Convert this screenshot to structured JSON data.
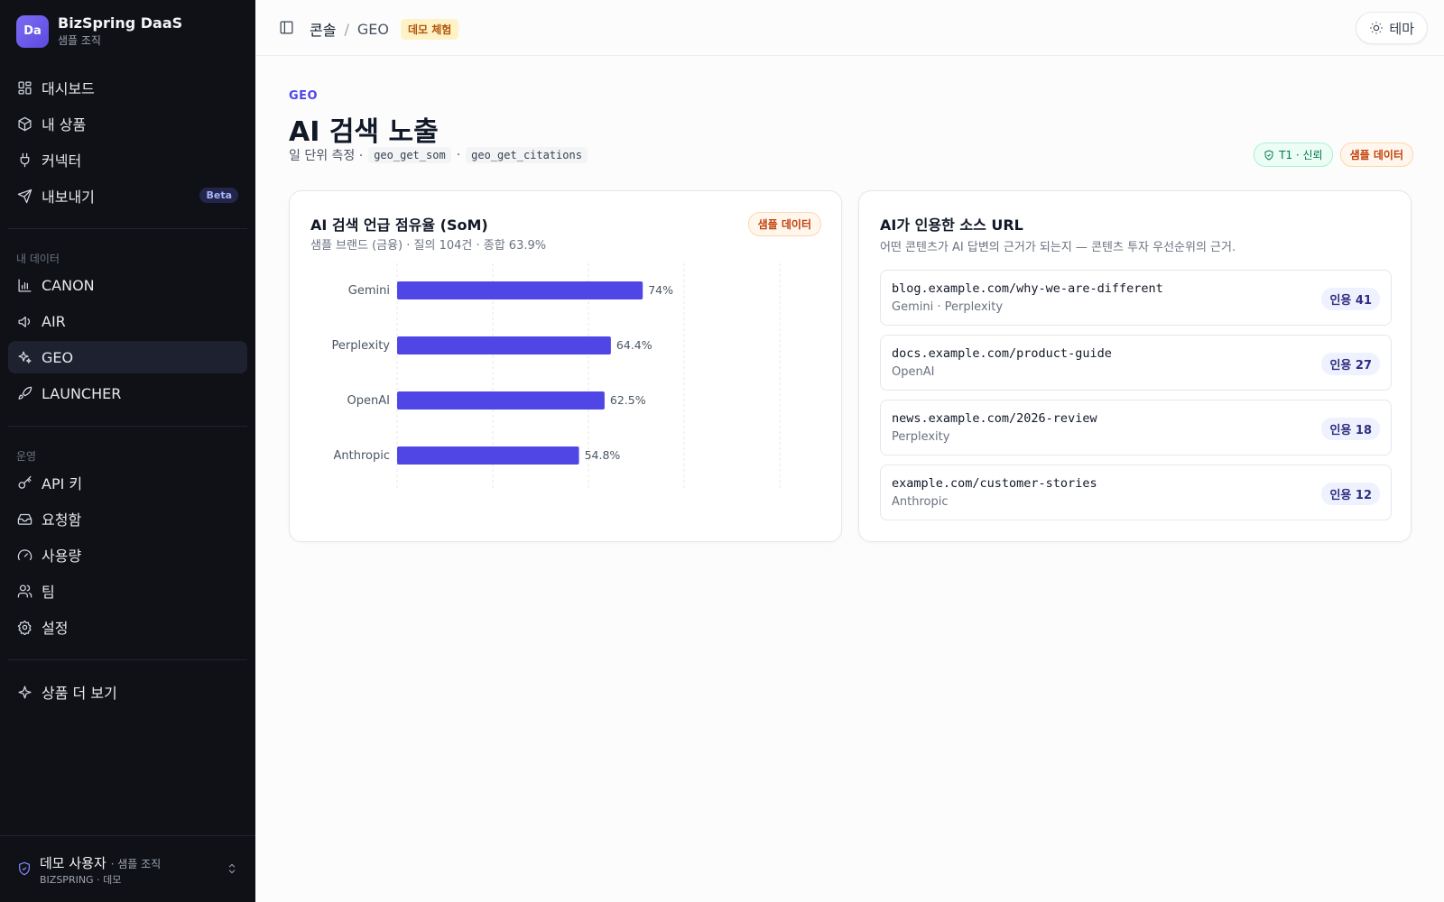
{
  "brand": {
    "logo": "Da",
    "name": "BizSpring DaaS",
    "org": "샘플 조직"
  },
  "sidebar": {
    "main": [
      {
        "label": "대시보드",
        "icon": "dashboard-icon"
      },
      {
        "label": "내 상품",
        "icon": "package-icon"
      },
      {
        "label": "커넥터",
        "icon": "plug-icon"
      },
      {
        "label": "내보내기",
        "icon": "send-icon",
        "badge": "Beta"
      }
    ],
    "data_section_label": "내 데이터",
    "data": [
      {
        "label": "CANON",
        "icon": "bar-chart-icon"
      },
      {
        "label": "AIR",
        "icon": "megaphone-icon"
      },
      {
        "label": "GEO",
        "icon": "sparkles-icon",
        "active": true
      },
      {
        "label": "LAUNCHER",
        "icon": "rocket-icon"
      }
    ],
    "ops_section_label": "운영",
    "ops": [
      {
        "label": "API 키",
        "icon": "key-icon"
      },
      {
        "label": "요청함",
        "icon": "inbox-icon"
      },
      {
        "label": "사용량",
        "icon": "gauge-icon"
      },
      {
        "label": "팀",
        "icon": "users-icon"
      },
      {
        "label": "설정",
        "icon": "gear-icon"
      }
    ],
    "more": {
      "label": "상품 더 보기",
      "icon": "sparkle-icon"
    },
    "user": {
      "name": "데모 사용자",
      "org": "· 샘플 조직",
      "role": "BIZSPRING · 데모"
    }
  },
  "topbar": {
    "crumb_root": "콘솔",
    "crumb_sep": "/",
    "crumb_current": "GEO",
    "demo_badge": "데모 체험",
    "theme_label": "테마"
  },
  "page": {
    "eyebrow": "GEO",
    "title": "AI 검색 노출",
    "sub_prefix": "일 단위 측정 ·",
    "code1": "geo_get_som",
    "sub_sep": "·",
    "code2": "geo_get_citations",
    "trust_pill": "T1 · 신뢰",
    "sample_pill": "샘플 데이터"
  },
  "som_card": {
    "title": "AI 검색 언급 점유율 (SoM)",
    "subtitle": "샘플 브랜드 (금융) · 질의 104건 · 종합 63.9%",
    "badge": "샘플 데이터"
  },
  "chart_data": {
    "type": "bar",
    "orientation": "horizontal",
    "categories": [
      "Gemini",
      "Perplexity",
      "OpenAI",
      "Anthropic"
    ],
    "values": [
      74,
      64.4,
      62.5,
      54.8
    ],
    "value_labels": [
      "74%",
      "64.4%",
      "62.5%",
      "54.8%"
    ],
    "xlim": [
      0,
      115
    ],
    "grid": true,
    "bar_color": "#4f46e5"
  },
  "citations_card": {
    "title": "AI가 인용한 소스 URL",
    "subtitle": "어떤 콘텐츠가 AI 답변의 근거가 되는지 — 콘텐츠 투자 우선순위의 근거.",
    "items": [
      {
        "url": "blog.example.com/why-we-are-different",
        "sources": "Gemini · Perplexity",
        "count": "인용 41"
      },
      {
        "url": "docs.example.com/product-guide",
        "sources": "OpenAI",
        "count": "인용 27"
      },
      {
        "url": "news.example.com/2026-review",
        "sources": "Perplexity",
        "count": "인용 18"
      },
      {
        "url": "example.com/customer-stories",
        "sources": "Anthropic",
        "count": "인용 12"
      }
    ]
  }
}
